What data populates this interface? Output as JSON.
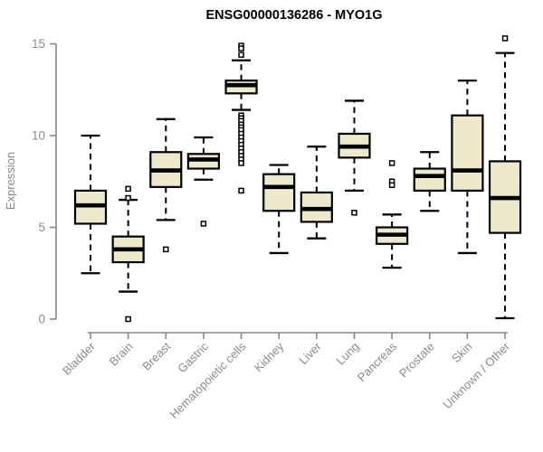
{
  "chart_data": {
    "type": "boxplot",
    "title": "ENSG00000136286 - MYO1G",
    "xlabel": "",
    "ylabel": "Expression",
    "ylim": [
      0,
      15
    ],
    "yticks": [
      0,
      5,
      10,
      15
    ],
    "grid": false,
    "legend": "none",
    "categories": [
      "Bladder",
      "Brain",
      "Breast",
      "Gastric",
      "Hematopoietic cells",
      "Kidney",
      "Liver",
      "Lung",
      "Pancreas",
      "Prostate",
      "Skin",
      "Unknown / Other"
    ],
    "series": [
      {
        "name": "Bladder",
        "whisker_low": 2.5,
        "q1": 5.2,
        "median": 6.2,
        "q3": 7.0,
        "whisker_high": 10.0,
        "outliers": []
      },
      {
        "name": "Brain",
        "whisker_low": 1.5,
        "q1": 3.1,
        "median": 3.8,
        "q3": 4.5,
        "whisker_high": 6.5,
        "outliers": [
          7.1,
          6.6,
          0.0
        ]
      },
      {
        "name": "Breast",
        "whisker_low": 5.4,
        "q1": 7.2,
        "median": 8.1,
        "q3": 9.1,
        "whisker_high": 10.9,
        "outliers": [
          3.8
        ]
      },
      {
        "name": "Gastric",
        "whisker_low": 7.6,
        "q1": 8.2,
        "median": 8.7,
        "q3": 9.0,
        "whisker_high": 9.9,
        "outliers": [
          5.2
        ]
      },
      {
        "name": "Hematopoietic cells",
        "whisker_low": 11.4,
        "q1": 12.3,
        "median": 12.75,
        "q3": 13.0,
        "whisker_high": 14.1,
        "outliers": [
          14.9,
          14.75,
          14.4,
          11.1,
          10.95,
          10.8,
          10.6,
          10.45,
          10.3,
          10.1,
          9.9,
          9.7,
          9.5,
          9.3,
          9.1,
          8.9,
          8.7,
          8.5,
          7.0
        ]
      },
      {
        "name": "Kidney",
        "whisker_low": 3.6,
        "q1": 5.9,
        "median": 7.2,
        "q3": 7.9,
        "whisker_high": 8.4,
        "outliers": []
      },
      {
        "name": "Liver",
        "whisker_low": 4.4,
        "q1": 5.3,
        "median": 6.0,
        "q3": 6.9,
        "whisker_high": 9.4,
        "outliers": []
      },
      {
        "name": "Lung",
        "whisker_low": 7.0,
        "q1": 8.8,
        "median": 9.4,
        "q3": 10.1,
        "whisker_high": 11.9,
        "outliers": [
          5.8
        ]
      },
      {
        "name": "Pancreas",
        "whisker_low": 2.8,
        "q1": 4.1,
        "median": 4.6,
        "q3": 5.0,
        "whisker_high": 5.7,
        "outliers": [
          8.5,
          7.5,
          7.3
        ]
      },
      {
        "name": "Prostate",
        "whisker_low": 5.9,
        "q1": 7.0,
        "median": 7.8,
        "q3": 8.2,
        "whisker_high": 9.1,
        "outliers": []
      },
      {
        "name": "Skin",
        "whisker_low": 3.6,
        "q1": 7.0,
        "median": 8.1,
        "q3": 11.1,
        "whisker_high": 13.0,
        "outliers": []
      },
      {
        "name": "Unknown / Other",
        "whisker_low": 0.05,
        "q1": 4.7,
        "median": 6.6,
        "q3": 8.6,
        "whisker_high": 14.5,
        "outliers": [
          15.3
        ]
      }
    ],
    "colors": {
      "box_fill": "#EEE8CD",
      "box_stroke": "#000000",
      "median": "#000000",
      "whisker": "#000000",
      "outlier_stroke": "#000000",
      "outlier_fill": "#ffffff",
      "axis": "#878787",
      "tick_label": "#8a8a8a",
      "title": "#000000"
    }
  }
}
